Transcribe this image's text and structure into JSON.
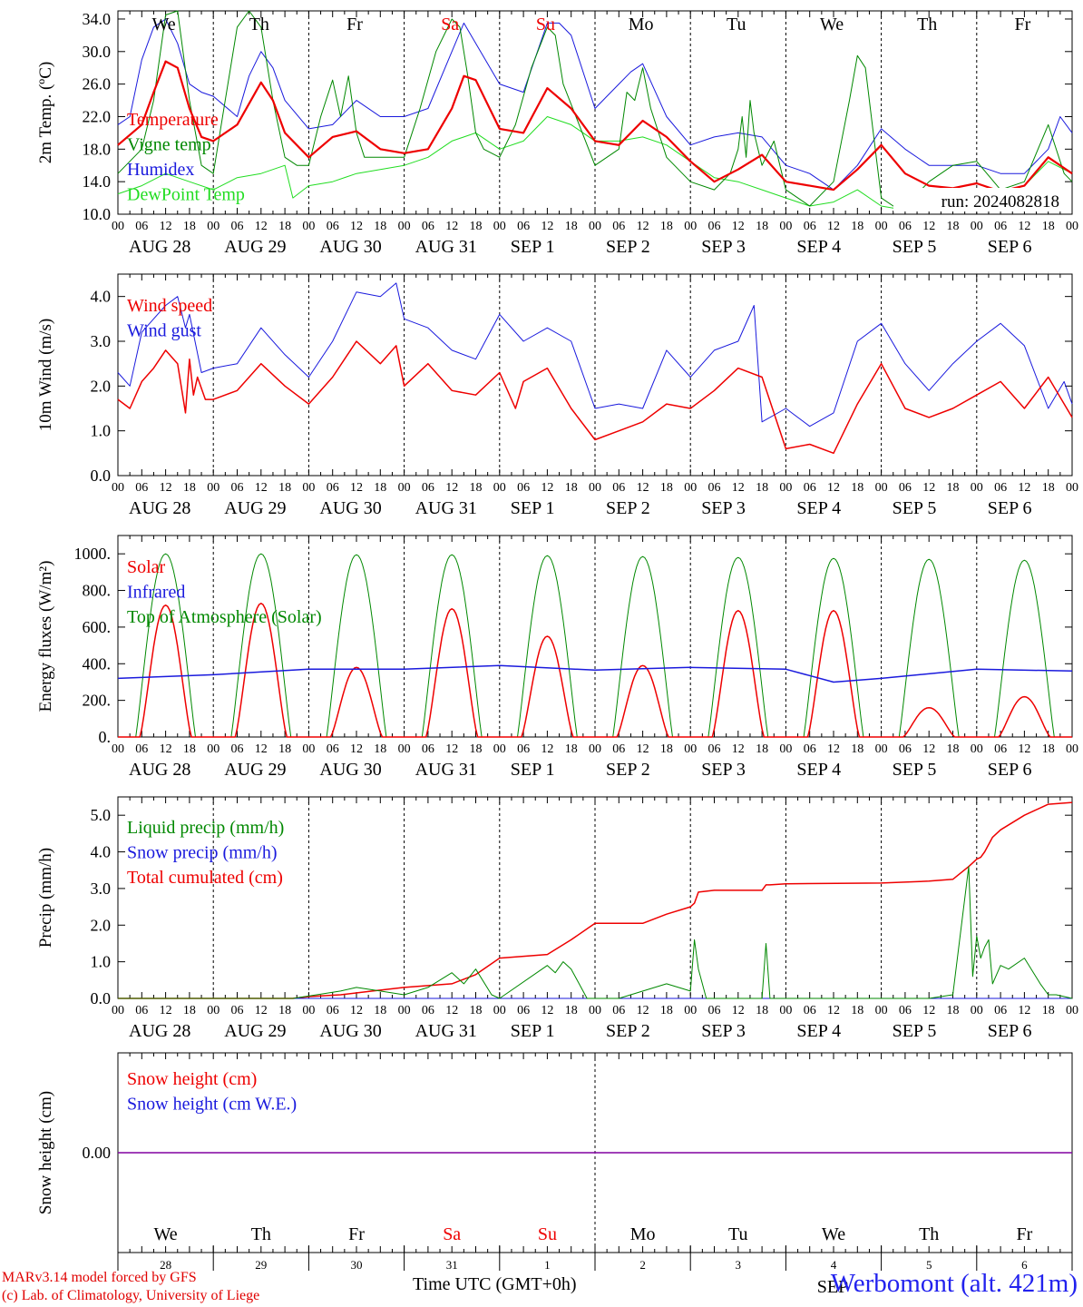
{
  "days": [
    {
      "weekday": "We",
      "date": "AUG 28",
      "day_num": "28",
      "weekend": false
    },
    {
      "weekday": "Th",
      "date": "AUG 29",
      "day_num": "29",
      "weekend": false
    },
    {
      "weekday": "Fr",
      "date": "AUG 30",
      "day_num": "30",
      "weekend": false
    },
    {
      "weekday": "Sa",
      "date": "AUG 31",
      "day_num": "31",
      "weekend": true
    },
    {
      "weekday": "Su",
      "date": "SEP  1",
      "day_num": "1",
      "weekend": true
    },
    {
      "weekday": "Mo",
      "date": "SEP  2",
      "day_num": "2",
      "weekend": false
    },
    {
      "weekday": "Tu",
      "date": "SEP  3",
      "day_num": "3",
      "weekend": false
    },
    {
      "weekday": "We",
      "date": "SEP  4",
      "day_num": "4",
      "weekend": false
    },
    {
      "weekday": "Th",
      "date": "SEP  5",
      "day_num": "5",
      "weekend": false
    },
    {
      "weekday": "Fr",
      "date": "SEP  6",
      "day_num": "6",
      "weekend": false
    }
  ],
  "hour_ticks": [
    "00",
    "06",
    "12",
    "18"
  ],
  "final_tick": "00",
  "footer": {
    "model": "MARv3.14 model forced by GFS",
    "copyright": "(c) Lab. of Climatology, University of Liege",
    "location": "Werbomont (alt. 421m)",
    "bottom_month": "SEP",
    "xlabel": "Time UTC (GMT+0h)"
  },
  "colors": {
    "red": "#ee0000",
    "green": "#008800",
    "blue": "#1a1add",
    "lightgreen": "#22dd22",
    "purple": "#8000a0",
    "weekend": "#ee0000"
  },
  "chart_data": [
    {
      "id": "temperature",
      "type": "line",
      "ylabel": "2m Temp. (ºC)",
      "ylim": [
        10.0,
        35.0
      ],
      "yticks": [
        10.0,
        14.0,
        18.0,
        22.0,
        26.0,
        30.0,
        34.0
      ],
      "ytick_labels": [
        "10.0",
        "14.0",
        "18.0",
        "22.0",
        "26.0",
        "30.0",
        "34.0"
      ],
      "annotation": "run: 2024082818",
      "x_unit": "hours since AUG 28 00 UTC",
      "series": [
        {
          "name": "Temperature",
          "color": "red",
          "width": 2.2,
          "x": [
            0,
            6,
            9,
            12,
            15,
            18,
            21,
            24,
            30,
            36,
            39,
            42,
            48,
            54,
            60,
            66,
            72,
            78,
            84,
            87,
            90,
            96,
            102,
            108,
            114,
            120,
            126,
            132,
            138,
            144,
            150,
            156,
            162,
            168,
            174,
            180,
            186,
            192,
            198,
            204,
            210,
            216,
            222,
            228,
            234,
            240
          ],
          "y": [
            18.5,
            21,
            25,
            28.8,
            28,
            23,
            19.5,
            19,
            21,
            26.2,
            24,
            20,
            17,
            19.5,
            20.2,
            18,
            17.5,
            18,
            23,
            27,
            26.5,
            20.5,
            20,
            25.5,
            23,
            19,
            18.5,
            21.5,
            19.5,
            16.5,
            14,
            15.5,
            17.3,
            14,
            13.5,
            13,
            15.5,
            18.5,
            15,
            13.5,
            13.2,
            13.8,
            12.8,
            13.5,
            17,
            15
          ]
        },
        {
          "name": "Vigne temp",
          "color": "green",
          "width": 1,
          "x": [
            0,
            6,
            9,
            12,
            15,
            18,
            21,
            24,
            27,
            30,
            33,
            36,
            39,
            42,
            45,
            48,
            51,
            54,
            56,
            58,
            60,
            62,
            66,
            72,
            76,
            80,
            84,
            86,
            88,
            90,
            92,
            96,
            100,
            104,
            108,
            110,
            112,
            116,
            120,
            126,
            128,
            130,
            132,
            134,
            138,
            144,
            150,
            154,
            156,
            157,
            158,
            159,
            160,
            162,
            165,
            168,
            174,
            180,
            184,
            186,
            188,
            190,
            192,
            195,
            198,
            204,
            210,
            216,
            222,
            228,
            234,
            238,
            240
          ],
          "y": [
            15,
            18,
            24,
            34.5,
            35,
            24,
            16,
            15,
            24,
            33,
            35,
            33,
            24,
            17,
            16,
            16,
            22,
            26.5,
            22,
            27,
            20,
            17,
            17,
            17,
            23,
            30,
            34,
            33,
            27,
            20,
            18,
            17,
            21,
            28,
            33,
            32,
            26,
            21,
            16,
            18,
            25,
            24,
            28,
            23,
            17,
            14,
            13,
            15,
            18,
            22,
            17,
            24,
            20,
            16,
            19,
            13,
            11,
            14,
            24,
            29.5,
            28,
            20,
            12,
            11,
            11,
            14,
            16,
            16.5,
            13,
            14,
            21,
            15,
            14
          ]
        },
        {
          "name": "Humidex",
          "color": "blue",
          "width": 1,
          "x": [
            0,
            3,
            6,
            9,
            12,
            15,
            18,
            21,
            24,
            30,
            33,
            36,
            39,
            42,
            48,
            54,
            60,
            66,
            72,
            78,
            84,
            87,
            90,
            96,
            102,
            108,
            111,
            114,
            120,
            126,
            129,
            132,
            138,
            144,
            150,
            156,
            162,
            168,
            174,
            180,
            186,
            192,
            198,
            204,
            210,
            216,
            222,
            228,
            234,
            237,
            240
          ],
          "y": [
            21,
            22,
            29,
            33,
            34,
            31,
            26,
            25,
            24.5,
            22,
            27,
            30,
            28,
            24,
            20.5,
            21,
            24,
            22,
            22,
            23,
            30,
            33.5,
            31,
            26,
            25,
            33.5,
            33.5,
            32,
            23,
            26,
            27.5,
            28.5,
            22,
            18.5,
            19.5,
            20,
            19.5,
            16,
            15,
            13,
            16,
            20.5,
            18,
            16,
            16,
            16,
            15,
            15,
            18,
            22,
            20
          ]
        },
        {
          "name": "DewPoint Temp",
          "color": "lightgreen",
          "width": 1,
          "x": [
            0,
            6,
            12,
            18,
            24,
            30,
            36,
            42,
            44,
            48,
            54,
            60,
            66,
            72,
            78,
            84,
            90,
            96,
            102,
            108,
            114,
            120,
            126,
            132,
            138,
            144,
            150,
            156,
            162,
            168,
            174,
            180,
            186,
            192,
            198,
            204,
            210,
            216,
            222,
            228,
            234,
            240
          ],
          "y": [
            12.5,
            13.5,
            15,
            14,
            13,
            14.5,
            15,
            16,
            12,
            13.5,
            14,
            15,
            15.5,
            16,
            17,
            19,
            20,
            18,
            19,
            22,
            21,
            19,
            19,
            19.5,
            18.5,
            16.5,
            14.5,
            14,
            13,
            12,
            11,
            11.5,
            13,
            11,
            10.5,
            12,
            13,
            13,
            12.5,
            13.5,
            16.5,
            15
          ]
        }
      ]
    },
    {
      "id": "wind",
      "type": "line",
      "ylabel": "10m Wind (m/s)",
      "ylim": [
        0.0,
        4.5
      ],
      "yticks": [
        0.0,
        1.0,
        2.0,
        3.0,
        4.0
      ],
      "ytick_labels": [
        "0.0",
        "1.0",
        "2.0",
        "3.0",
        "4.0"
      ],
      "x_unit": "hours since AUG 28 00 UTC",
      "series": [
        {
          "name": "Wind speed",
          "color": "red",
          "width": 1.5,
          "x": [
            0,
            3,
            6,
            9,
            12,
            15,
            17,
            18,
            19,
            20,
            22,
            24,
            30,
            36,
            42,
            48,
            54,
            60,
            66,
            70,
            72,
            78,
            84,
            90,
            96,
            100,
            102,
            108,
            114,
            120,
            126,
            132,
            138,
            144,
            150,
            156,
            162,
            168,
            174,
            180,
            186,
            192,
            198,
            204,
            210,
            216,
            222,
            228,
            234,
            240
          ],
          "y": [
            1.7,
            1.5,
            2.1,
            2.4,
            2.8,
            2.5,
            1.4,
            2.6,
            1.8,
            2.2,
            1.7,
            1.7,
            1.9,
            2.5,
            2.0,
            1.6,
            2.2,
            3.0,
            2.5,
            2.9,
            2.0,
            2.5,
            1.9,
            1.8,
            2.3,
            1.5,
            2.1,
            2.4,
            1.5,
            0.8,
            1.0,
            1.2,
            1.6,
            1.5,
            1.9,
            2.4,
            2.2,
            0.6,
            0.7,
            0.5,
            1.6,
            2.5,
            1.5,
            1.3,
            1.5,
            1.8,
            2.1,
            1.5,
            2.2,
            1.3
          ]
        },
        {
          "name": "Wind gust",
          "color": "blue",
          "width": 1,
          "x": [
            0,
            3,
            6,
            9,
            12,
            15,
            17,
            18,
            21,
            24,
            30,
            36,
            42,
            48,
            54,
            60,
            66,
            70,
            72,
            78,
            84,
            90,
            96,
            102,
            108,
            114,
            120,
            126,
            132,
            138,
            144,
            150,
            156,
            160,
            162,
            168,
            174,
            180,
            186,
            192,
            198,
            204,
            210,
            216,
            222,
            228,
            234,
            238,
            240
          ],
          "y": [
            2.3,
            2.0,
            3.2,
            3.5,
            3.8,
            4.0,
            3.3,
            3.6,
            2.3,
            2.4,
            2.5,
            3.3,
            2.7,
            2.2,
            3.0,
            4.1,
            4.0,
            4.3,
            3.5,
            3.3,
            2.8,
            2.6,
            3.6,
            3.0,
            3.3,
            3.0,
            1.5,
            1.6,
            1.5,
            2.8,
            2.2,
            2.8,
            3.0,
            3.8,
            1.2,
            1.5,
            1.1,
            1.4,
            3.0,
            3.4,
            2.5,
            1.9,
            2.5,
            3.0,
            3.4,
            2.9,
            1.5,
            2.1,
            1.6
          ]
        }
      ]
    },
    {
      "id": "energy",
      "type": "line",
      "ylabel": "Energy fluxes (W/m²)",
      "ylim": [
        0,
        1100
      ],
      "yticks": [
        0,
        200,
        400,
        600,
        800,
        1000
      ],
      "ytick_labels": [
        "0.",
        "200.",
        "400.",
        "600.",
        "800.",
        "1000."
      ],
      "x_unit": "hours since AUG 28 00 UTC",
      "toa_peak": [
        1000,
        1000,
        995,
        995,
        990,
        985,
        980,
        975,
        970,
        965
      ],
      "solar_peak": [
        720,
        730,
        380,
        700,
        550,
        390,
        690,
        690,
        160,
        220
      ],
      "series": [
        {
          "name": "Solar",
          "color": "red",
          "width": 1.5
        },
        {
          "name": "Infrared",
          "color": "blue",
          "width": 1.5,
          "x": [
            0,
            24,
            48,
            72,
            96,
            120,
            144,
            168,
            180,
            192,
            216,
            240
          ],
          "y": [
            320,
            340,
            370,
            370,
            390,
            365,
            380,
            370,
            300,
            320,
            370,
            360
          ]
        },
        {
          "name": "Top of Atmosphere (Solar)",
          "color": "green",
          "width": 1
        }
      ]
    },
    {
      "id": "precip",
      "type": "line",
      "ylabel": "Precip (mm/h)",
      "ylim": [
        0.0,
        5.5
      ],
      "yticks": [
        0.0,
        1.0,
        2.0,
        3.0,
        4.0,
        5.0
      ],
      "ytick_labels": [
        "0.0",
        "1.0",
        "2.0",
        "3.0",
        "4.0",
        "5.0"
      ],
      "x_unit": "hours since AUG 28 00 UTC",
      "series": [
        {
          "name": "Liquid precip (mm/h)",
          "color": "green",
          "width": 1,
          "x": [
            0,
            44,
            50,
            56,
            60,
            66,
            72,
            78,
            84,
            87,
            90,
            94,
            96,
            108,
            110,
            112,
            114,
            118,
            120,
            126,
            138,
            144,
            145,
            146,
            148,
            150,
            156,
            162,
            163,
            164,
            166,
            168,
            192,
            204,
            210,
            214,
            215,
            216,
            217,
            218,
            219,
            220,
            222,
            224,
            228,
            232,
            234,
            236,
            240
          ],
          "y": [
            0,
            0,
            0.1,
            0.2,
            0.3,
            0.2,
            0.1,
            0.3,
            0.7,
            0.4,
            0.8,
            0.1,
            0,
            0.9,
            0.7,
            1.0,
            0.8,
            0,
            0,
            0,
            0.4,
            0.2,
            1.6,
            0.8,
            0,
            0,
            0,
            0,
            1.5,
            0,
            0,
            0,
            0,
            0,
            0.1,
            3.6,
            0.6,
            1.7,
            1.1,
            1.4,
            1.6,
            0.4,
            0.9,
            0.8,
            1.1,
            0.4,
            0.1,
            0.1,
            0
          ]
        },
        {
          "name": "Snow precip (mm/h)",
          "color": "blue",
          "width": 1,
          "x": [
            0,
            240
          ],
          "y": [
            0,
            0
          ]
        },
        {
          "name": "Total cumulated (cm)",
          "color": "red",
          "width": 1.5,
          "x": [
            0,
            44,
            48,
            56,
            64,
            72,
            84,
            90,
            96,
            102,
            108,
            114,
            120,
            132,
            138,
            144,
            145,
            146,
            150,
            156,
            162,
            163,
            164,
            168,
            192,
            204,
            210,
            214,
            215,
            216,
            217,
            218,
            220,
            222,
            228,
            234,
            240
          ],
          "y": [
            0,
            0,
            0.05,
            0.1,
            0.2,
            0.3,
            0.4,
            0.65,
            1.1,
            1.15,
            1.2,
            1.6,
            2.05,
            2.05,
            2.3,
            2.5,
            2.6,
            2.9,
            2.95,
            2.95,
            2.95,
            3.1,
            3.1,
            3.13,
            3.15,
            3.2,
            3.25,
            3.6,
            3.7,
            3.8,
            3.85,
            4.0,
            4.4,
            4.6,
            5.0,
            5.3,
            5.35
          ]
        }
      ]
    },
    {
      "id": "snow",
      "type": "line",
      "ylabel": "Snow height (cm)",
      "ylim": [
        -1,
        1
      ],
      "yticks": [
        0
      ],
      "ytick_labels": [
        "0.00"
      ],
      "x_unit": "hours since AUG 28 00 UTC",
      "series": [
        {
          "name": "Snow height (cm)",
          "color": "red",
          "width": 1,
          "x": [
            0,
            240
          ],
          "y": [
            0,
            0
          ]
        },
        {
          "name": "Snow height (cm W.E.)",
          "color": "blue",
          "width": 1,
          "x": [
            0,
            240
          ],
          "y": [
            0,
            0
          ]
        }
      ]
    }
  ]
}
